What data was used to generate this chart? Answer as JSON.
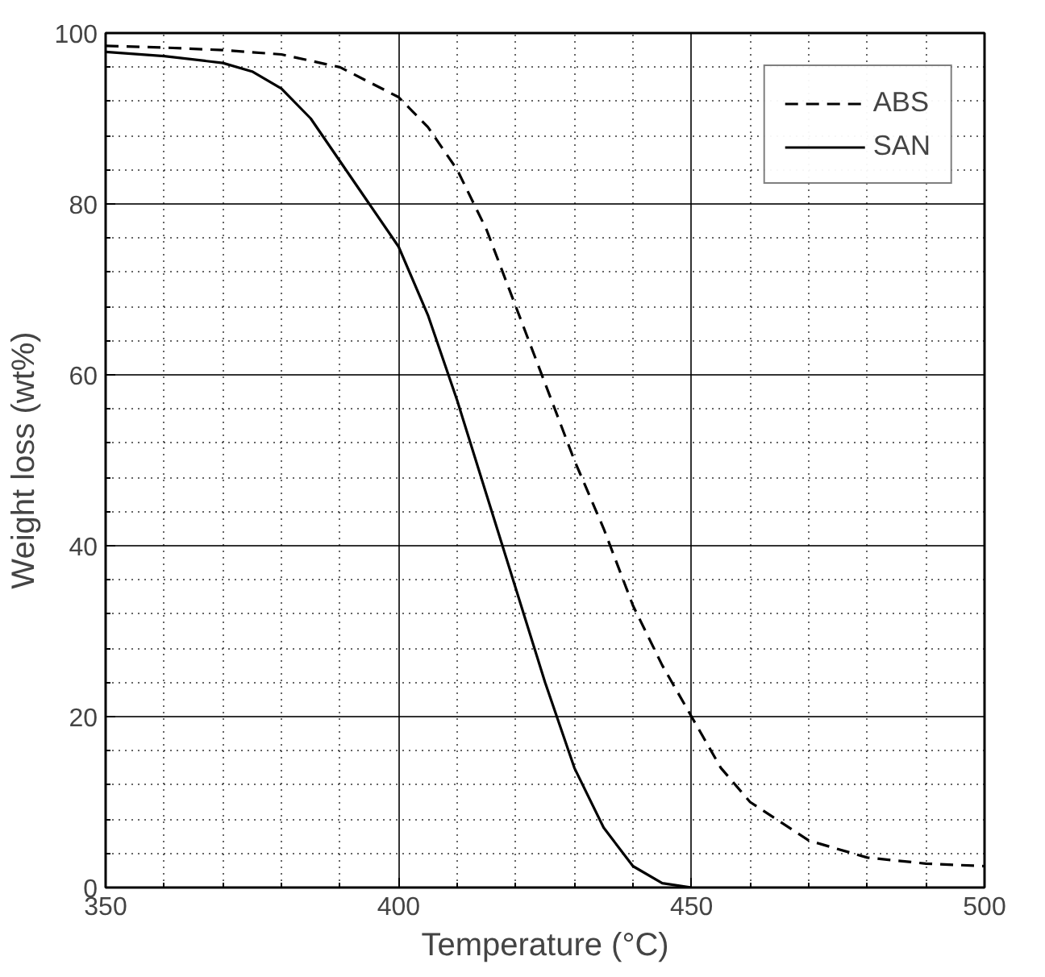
{
  "chart_data": {
    "type": "line",
    "xlabel": "Temperature (°C)",
    "ylabel": "Weight loss (wt%)",
    "xlim": [
      350,
      500
    ],
    "xticks": [
      350,
      400,
      450,
      500
    ],
    "ylim": [
      0,
      100
    ],
    "yticks": [
      0,
      20,
      40,
      60,
      80,
      100
    ],
    "grid": true,
    "legend": "top right",
    "marker": "none",
    "series": [
      {
        "name": "ABS",
        "color": "#000000",
        "line_style": "dashed",
        "x": [
          350,
          360,
          370,
          380,
          390,
          400,
          405,
          410,
          415,
          420,
          425,
          430,
          435,
          440,
          445,
          450,
          455,
          460,
          470,
          480,
          490,
          500
        ],
        "values": [
          98.5,
          98.3,
          98,
          97.5,
          96,
          92.5,
          89,
          84,
          77,
          68,
          59,
          50,
          42,
          33,
          26,
          20,
          14,
          10,
          5.5,
          3.5,
          2.8,
          2.5
        ]
      },
      {
        "name": "SAN",
        "color": "#000000",
        "line_style": "solid",
        "x": [
          350,
          360,
          370,
          375,
          380,
          385,
          390,
          395,
          400,
          405,
          410,
          415,
          420,
          425,
          430,
          435,
          440,
          445,
          450
        ],
        "values": [
          97.8,
          97.3,
          96.5,
          95.5,
          93.5,
          90,
          85,
          80,
          75,
          67,
          57,
          46,
          35,
          24,
          14,
          7,
          2.5,
          0.5,
          0
        ]
      }
    ]
  }
}
